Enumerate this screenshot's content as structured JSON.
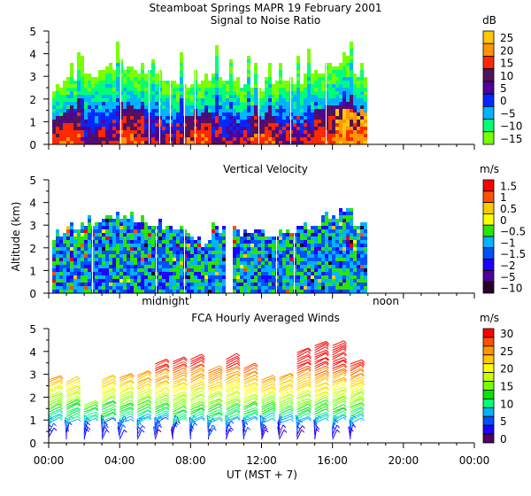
{
  "title": "Steamboat Springs  MAPR 19 February 2001",
  "xlabel": "UT  (MST + 7)",
  "x_ticks": [
    "00:00",
    "04:00",
    "08:00",
    "12:00",
    "16:00",
    "20:00",
    "00:00"
  ],
  "annotations": {
    "midnight": "midnight",
    "noon": "noon"
  },
  "chart_data": [
    {
      "type": "heatmap",
      "title": "Signal to Noise Ratio",
      "ylabel": "",
      "ylim": [
        0,
        5
      ],
      "y_ticks": [
        "0",
        "1",
        "2",
        "3",
        "4",
        "5"
      ],
      "xlim_hours_ut": [
        0,
        24
      ],
      "data_extent_hours_ut": [
        0.2,
        17.8
      ],
      "colorbar": {
        "unit": "dB",
        "labels": [
          "25",
          "20",
          "15",
          "10",
          "5",
          "0",
          "−5",
          "−10",
          "−15"
        ],
        "colors": [
          "#ffc800",
          "#ff9600",
          "#ff2800",
          "#50145a",
          "#500096",
          "#0028ff",
          "#00b4ff",
          "#00ff78",
          "#78ff00"
        ]
      }
    },
    {
      "type": "heatmap",
      "title": "Vertical Velocity",
      "ylabel": "Altitude (km)",
      "ylim": [
        0,
        5
      ],
      "y_ticks": [
        "0",
        "1",
        "2",
        "3",
        "4",
        "5"
      ],
      "xlim_hours_ut": [
        0,
        24
      ],
      "data_extent_hours_ut": [
        0.2,
        17.8
      ],
      "colorbar": {
        "unit": "m/s",
        "labels": [
          "1.5",
          "1",
          "0.5",
          "0",
          "−0.5",
          "−1",
          "−1.5",
          "−2",
          "−5",
          "−10"
        ],
        "colors": [
          "#ff0000",
          "#ff5000",
          "#ffc800",
          "#ffff00",
          "#28e600",
          "#00b4ff",
          "#0050ff",
          "#1e00ff",
          "#50009a",
          "#280028"
        ]
      }
    },
    {
      "type": "wind-barbs",
      "title": "FCA Hourly Averaged Winds",
      "ylim": [
        0,
        5
      ],
      "y_ticks": [
        "0",
        "1",
        "2",
        "3",
        "4",
        "5"
      ],
      "xlim_hours_ut": [
        0,
        24
      ],
      "hours_ut": [
        0,
        1,
        2,
        3,
        4,
        5,
        6,
        7,
        8,
        9,
        10,
        11,
        12,
        13,
        14,
        15,
        16,
        17
      ],
      "top_altitude_km": [
        2.8,
        2.7,
        1.7,
        2.8,
        2.9,
        3.0,
        3.5,
        3.6,
        3.7,
        3.2,
        3.7,
        3.3,
        2.8,
        2.9,
        4.0,
        4.3,
        4.3,
        3.5
      ],
      "colorbar": {
        "unit": "m/s",
        "labels": [
          "30",
          "25",
          "20",
          "15",
          "10",
          "5",
          "0"
        ],
        "colors": [
          "#ff0000",
          "#ff5000",
          "#ff9600",
          "#ffc800",
          "#ffff00",
          "#c8ff00",
          "#78ff00",
          "#00e600",
          "#00ff78",
          "#00b4ff",
          "#0050ff",
          "#1e00ff",
          "#500064"
        ]
      }
    }
  ]
}
